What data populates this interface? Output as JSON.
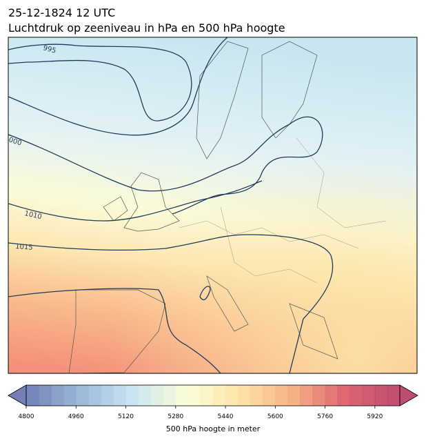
{
  "header": {
    "title_line1": "25-12-1824 12 UTC",
    "title_line2": "Luchtdruk op zeeniveau in hPa en 500 hPa hoogte"
  },
  "map": {
    "contour_labels": [
      "995",
      "000",
      "1010",
      "1015"
    ]
  },
  "colorbar": {
    "lim": [
      4800,
      6000
    ],
    "step": 40,
    "colormap": [
      "#5c68ad",
      "#87acd0",
      "#c2e1ee",
      "#fafcd2",
      "#fde09a",
      "#f7a26f",
      "#d7495a",
      "#b32e57"
    ],
    "ticks": [
      4800,
      4960,
      5120,
      5280,
      5440,
      5600,
      5760,
      5920
    ],
    "label": "500 hPa hoogte in meter"
  }
}
